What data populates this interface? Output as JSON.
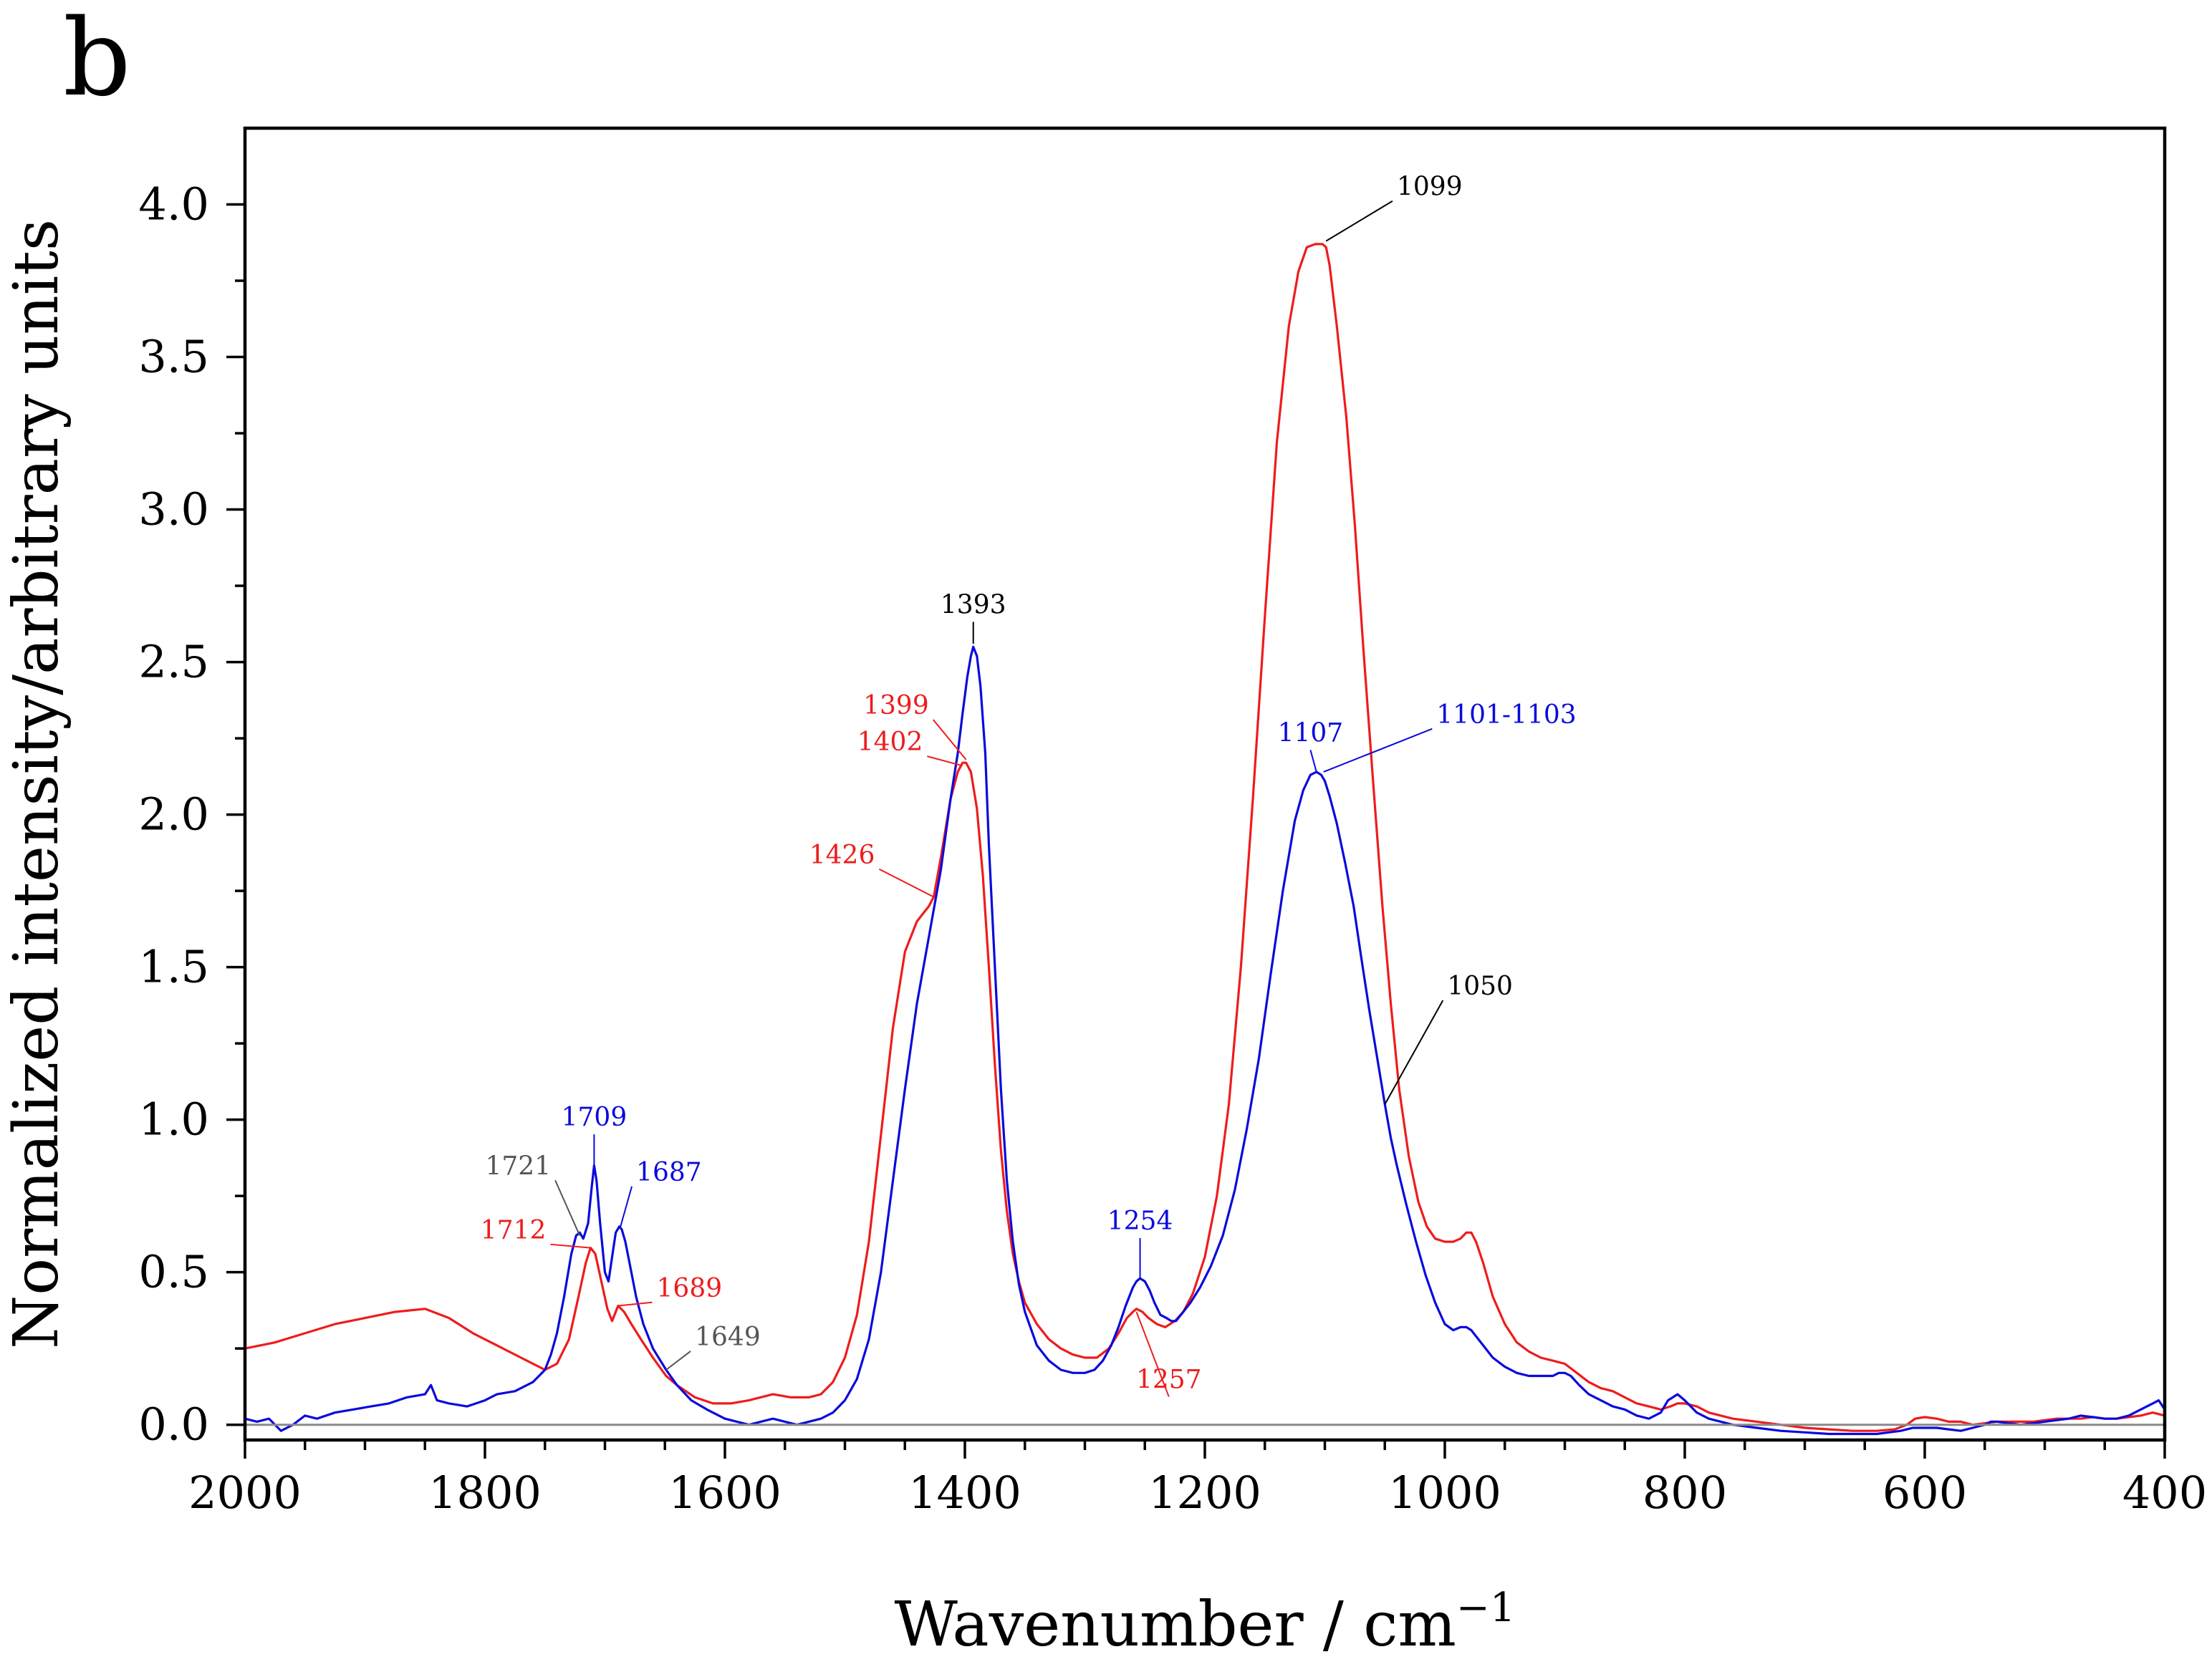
{
  "panel_label": "b",
  "colors": {
    "red": "#ee1c1c",
    "blue": "#0a0adc",
    "black": "#000000",
    "grey": "#555555",
    "baseline": "#8a8a8a"
  },
  "chart_data": {
    "type": "line",
    "title": "",
    "xlabel": "Wavenumber / cm",
    "xlabel_sup": "−1",
    "ylabel": "Normalized intensity/arbitrary units",
    "xlim": [
      2000,
      400
    ],
    "ylim": [
      -0.05,
      4.25
    ],
    "x_ticks": [
      2000,
      1800,
      1600,
      1400,
      1200,
      1000,
      800,
      600,
      400
    ],
    "x_tick_labels": [
      "2000",
      "1800",
      "1600",
      "1400",
      "1200",
      "1000",
      "800",
      "600",
      "400"
    ],
    "y_ticks": [
      0.0,
      0.5,
      1.0,
      1.5,
      2.0,
      2.5,
      3.0,
      3.5,
      4.0
    ],
    "y_tick_labels": [
      "0.0",
      "0.5",
      "1.0",
      "1.5",
      "2.0",
      "2.5",
      "3.0",
      "3.5",
      "4.0"
    ],
    "baseline_y": 0,
    "series": [
      {
        "name": "red spectrum",
        "color": "red",
        "x": [
          2000,
          1975,
          1950,
          1925,
          1900,
          1875,
          1850,
          1830,
          1810,
          1790,
          1770,
          1750,
          1740,
          1730,
          1722,
          1716,
          1712,
          1708,
          1703,
          1698,
          1694,
          1689,
          1684,
          1678,
          1670,
          1660,
          1649,
          1640,
          1625,
          1610,
          1595,
          1580,
          1560,
          1545,
          1530,
          1520,
          1510,
          1500,
          1490,
          1480,
          1470,
          1460,
          1450,
          1440,
          1430,
          1426,
          1420,
          1412,
          1406,
          1402,
          1399,
          1395,
          1390,
          1385,
          1380,
          1375,
          1370,
          1365,
          1360,
          1355,
          1350,
          1340,
          1330,
          1320,
          1310,
          1300,
          1290,
          1280,
          1272,
          1265,
          1260,
          1257,
          1252,
          1247,
          1240,
          1233,
          1225,
          1218,
          1210,
          1200,
          1190,
          1180,
          1170,
          1160,
          1150,
          1140,
          1130,
          1122,
          1115,
          1108,
          1102,
          1099,
          1096,
          1090,
          1082,
          1075,
          1068,
          1060,
          1052,
          1045,
          1038,
          1030,
          1022,
          1015,
          1008,
          1000,
          993,
          987,
          982,
          978,
          974,
          968,
          960,
          950,
          940,
          930,
          920,
          910,
          900,
          890,
          880,
          870,
          860,
          850,
          840,
          830,
          820,
          812,
          806,
          800,
          790,
          780,
          770,
          760,
          740,
          720,
          700,
          680,
          660,
          640,
          625,
          615,
          608,
          600,
          590,
          580,
          570,
          560,
          550,
          540,
          530,
          520,
          510,
          500,
          490,
          480,
          470,
          460,
          450,
          440,
          430,
          420,
          410,
          405,
          400
        ],
        "y": [
          0.25,
          0.27,
          0.3,
          0.33,
          0.35,
          0.37,
          0.38,
          0.35,
          0.3,
          0.26,
          0.22,
          0.18,
          0.2,
          0.28,
          0.42,
          0.53,
          0.58,
          0.56,
          0.47,
          0.38,
          0.34,
          0.39,
          0.37,
          0.33,
          0.28,
          0.22,
          0.16,
          0.13,
          0.09,
          0.07,
          0.07,
          0.08,
          0.1,
          0.09,
          0.09,
          0.1,
          0.14,
          0.22,
          0.36,
          0.6,
          0.95,
          1.3,
          1.55,
          1.65,
          1.7,
          1.73,
          1.86,
          2.05,
          2.14,
          2.17,
          2.17,
          2.14,
          2.02,
          1.8,
          1.5,
          1.18,
          0.9,
          0.7,
          0.56,
          0.47,
          0.4,
          0.33,
          0.28,
          0.25,
          0.23,
          0.22,
          0.22,
          0.25,
          0.3,
          0.35,
          0.37,
          0.38,
          0.37,
          0.35,
          0.33,
          0.32,
          0.34,
          0.37,
          0.43,
          0.55,
          0.75,
          1.05,
          1.5,
          2.05,
          2.65,
          3.22,
          3.6,
          3.78,
          3.86,
          3.87,
          3.87,
          3.86,
          3.8,
          3.6,
          3.3,
          2.95,
          2.55,
          2.12,
          1.7,
          1.38,
          1.1,
          0.88,
          0.73,
          0.65,
          0.61,
          0.6,
          0.6,
          0.61,
          0.63,
          0.63,
          0.6,
          0.53,
          0.42,
          0.33,
          0.27,
          0.24,
          0.22,
          0.21,
          0.2,
          0.17,
          0.14,
          0.12,
          0.11,
          0.09,
          0.07,
          0.06,
          0.05,
          0.06,
          0.07,
          0.07,
          0.06,
          0.04,
          0.03,
          0.02,
          0.01,
          0.0,
          -0.01,
          -0.015,
          -0.02,
          -0.02,
          -0.015,
          0.0,
          0.02,
          0.025,
          0.02,
          0.01,
          0.01,
          0.0,
          0.005,
          0.01,
          0.01,
          0.01,
          0.01,
          0.015,
          0.02,
          0.02,
          0.02,
          0.025,
          0.02,
          0.02,
          0.025,
          0.03,
          0.04,
          0.035,
          0.03
        ]
      },
      {
        "name": "blue spectrum",
        "color": "blue",
        "x": [
          2000,
          1990,
          1980,
          1970,
          1960,
          1950,
          1940,
          1925,
          1910,
          1895,
          1880,
          1865,
          1850,
          1845,
          1840,
          1830,
          1815,
          1800,
          1790,
          1775,
          1760,
          1750,
          1745,
          1740,
          1734,
          1728,
          1724,
          1721,
          1718,
          1714,
          1711,
          1709,
          1707,
          1704,
          1700,
          1697,
          1694,
          1691,
          1688,
          1686,
          1683,
          1679,
          1674,
          1668,
          1660,
          1649,
          1640,
          1628,
          1615,
          1600,
          1590,
          1580,
          1570,
          1560,
          1550,
          1540,
          1530,
          1520,
          1510,
          1500,
          1490,
          1480,
          1470,
          1460,
          1450,
          1440,
          1430,
          1420,
          1412,
          1406,
          1402,
          1398,
          1395,
          1393,
          1390,
          1387,
          1383,
          1380,
          1375,
          1370,
          1365,
          1360,
          1355,
          1350,
          1340,
          1330,
          1320,
          1310,
          1300,
          1292,
          1285,
          1278,
          1272,
          1266,
          1260,
          1257,
          1254,
          1250,
          1246,
          1242,
          1237,
          1232,
          1228,
          1224,
          1220,
          1212,
          1204,
          1195,
          1185,
          1175,
          1165,
          1155,
          1145,
          1135,
          1125,
          1118,
          1112,
          1107,
          1103,
          1100,
          1096,
          1090,
          1083,
          1076,
          1070,
          1063,
          1055,
          1050,
          1045,
          1040,
          1032,
          1024,
          1016,
          1008,
          1000,
          993,
          987,
          982,
          978,
          974,
          968,
          960,
          950,
          940,
          930,
          920,
          910,
          905,
          900,
          895,
          888,
          880,
          870,
          860,
          850,
          840,
          830,
          820,
          814,
          810,
          806,
          800,
          790,
          780,
          770,
          760,
          740,
          720,
          700,
          680,
          660,
          640,
          620,
          610,
          600,
          590,
          580,
          570,
          560,
          550,
          545,
          540,
          530,
          520,
          510,
          500,
          490,
          480,
          470,
          460,
          450,
          440,
          430,
          420,
          410,
          405,
          400
        ],
        "y": [
          0.02,
          0.01,
          0.02,
          -0.02,
          0.0,
          0.03,
          0.02,
          0.04,
          0.05,
          0.06,
          0.07,
          0.09,
          0.1,
          0.13,
          0.08,
          0.07,
          0.06,
          0.08,
          0.1,
          0.11,
          0.14,
          0.18,
          0.23,
          0.3,
          0.42,
          0.56,
          0.62,
          0.63,
          0.61,
          0.66,
          0.78,
          0.85,
          0.8,
          0.66,
          0.5,
          0.47,
          0.55,
          0.63,
          0.65,
          0.64,
          0.6,
          0.52,
          0.42,
          0.33,
          0.25,
          0.18,
          0.13,
          0.08,
          0.05,
          0.02,
          0.01,
          0.0,
          0.01,
          0.02,
          0.01,
          0.0,
          0.01,
          0.02,
          0.04,
          0.08,
          0.15,
          0.28,
          0.5,
          0.8,
          1.1,
          1.38,
          1.6,
          1.82,
          2.05,
          2.2,
          2.33,
          2.45,
          2.52,
          2.55,
          2.52,
          2.42,
          2.2,
          1.9,
          1.5,
          1.1,
          0.8,
          0.6,
          0.46,
          0.37,
          0.26,
          0.21,
          0.18,
          0.17,
          0.17,
          0.18,
          0.21,
          0.26,
          0.32,
          0.39,
          0.45,
          0.47,
          0.48,
          0.47,
          0.44,
          0.4,
          0.36,
          0.35,
          0.34,
          0.34,
          0.36,
          0.4,
          0.45,
          0.52,
          0.62,
          0.77,
          0.97,
          1.2,
          1.48,
          1.75,
          1.98,
          2.08,
          2.13,
          2.14,
          2.13,
          2.11,
          2.06,
          1.97,
          1.84,
          1.7,
          1.54,
          1.36,
          1.17,
          1.05,
          0.94,
          0.85,
          0.72,
          0.6,
          0.49,
          0.4,
          0.33,
          0.31,
          0.32,
          0.32,
          0.31,
          0.29,
          0.26,
          0.22,
          0.19,
          0.17,
          0.16,
          0.16,
          0.16,
          0.17,
          0.17,
          0.16,
          0.13,
          0.1,
          0.08,
          0.06,
          0.05,
          0.03,
          0.02,
          0.04,
          0.08,
          0.09,
          0.1,
          0.08,
          0.04,
          0.02,
          0.01,
          0.0,
          -0.01,
          -0.02,
          -0.025,
          -0.03,
          -0.03,
          -0.03,
          -0.02,
          -0.01,
          -0.01,
          -0.01,
          -0.015,
          -0.02,
          -0.01,
          0.0,
          0.01,
          0.01,
          0.005,
          0.0,
          0.005,
          0.01,
          0.015,
          0.02,
          0.03,
          0.025,
          0.02,
          0.02,
          0.03,
          0.05,
          0.07,
          0.08,
          0.05
        ]
      }
    ],
    "annotations": [
      {
        "label": "1099",
        "color": "black",
        "point": [
          1099,
          3.88
        ],
        "text_pos": [
          1040,
          4.03
        ],
        "anchor": "start"
      },
      {
        "label": "1393",
        "color": "black",
        "point": [
          1393,
          2.56
        ],
        "text_pos": [
          1393,
          2.66
        ],
        "anchor": "middle"
      },
      {
        "label": "1399",
        "color": "red",
        "point": [
          1399,
          2.18
        ],
        "text_pos": [
          1430,
          2.33
        ],
        "anchor": "end"
      },
      {
        "label": "1402",
        "color": "red",
        "point": [
          1402,
          2.16
        ],
        "text_pos": [
          1435,
          2.21
        ],
        "anchor": "end"
      },
      {
        "label": "1426",
        "color": "red",
        "point": [
          1426,
          1.73
        ],
        "text_pos": [
          1475,
          1.84
        ],
        "anchor": "end"
      },
      {
        "label": "1107",
        "color": "blue",
        "point": [
          1107,
          2.14
        ],
        "text_pos": [
          1112,
          2.24
        ],
        "anchor": "middle"
      },
      {
        "label": "1101-1103",
        "color": "blue",
        "point": [
          1101,
          2.14
        ],
        "text_pos": [
          1007,
          2.3
        ],
        "anchor": "start"
      },
      {
        "label": "1050",
        "color": "black",
        "point": [
          1050,
          1.05
        ],
        "text_pos": [
          998,
          1.41
        ],
        "anchor": "start"
      },
      {
        "label": "1254",
        "color": "blue",
        "point": [
          1254,
          0.48
        ],
        "text_pos": [
          1254,
          0.64
        ],
        "anchor": "middle"
      },
      {
        "label": "1257",
        "color": "red",
        "point": [
          1257,
          0.37
        ],
        "text_pos": [
          1230,
          0.12
        ],
        "anchor": "middle"
      },
      {
        "label": "1709",
        "color": "blue",
        "point": [
          1709,
          0.85
        ],
        "text_pos": [
          1709,
          0.98
        ],
        "anchor": "middle"
      },
      {
        "label": "1721",
        "color": "grey",
        "point": [
          1721,
          0.62
        ],
        "text_pos": [
          1745,
          0.82
        ],
        "anchor": "end"
      },
      {
        "label": "1712",
        "color": "red",
        "point": [
          1712,
          0.58
        ],
        "text_pos": [
          1749,
          0.61
        ],
        "anchor": "end"
      },
      {
        "label": "1687",
        "color": "blue",
        "point": [
          1687,
          0.65
        ],
        "text_pos": [
          1674,
          0.8
        ],
        "anchor": "start"
      },
      {
        "label": "1689",
        "color": "red",
        "point": [
          1689,
          0.39
        ],
        "text_pos": [
          1657,
          0.42
        ],
        "anchor": "start"
      },
      {
        "label": "1649",
        "color": "grey",
        "point": [
          1649,
          0.18
        ],
        "text_pos": [
          1625,
          0.26
        ],
        "anchor": "start"
      }
    ]
  }
}
